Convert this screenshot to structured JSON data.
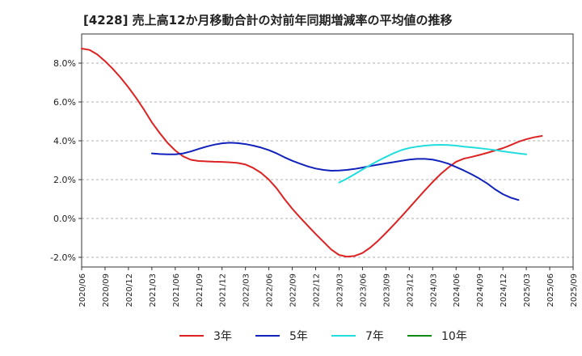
{
  "chart_data": {
    "type": "line",
    "title": "[4228]  売上高12か月移動合計の対前年同期増減率の平均値の推移",
    "xlabel": "",
    "ylabel": "",
    "ylim": [
      -2.5,
      9.5
    ],
    "yticks": [
      -2.0,
      0.0,
      2.0,
      4.0,
      6.0,
      8.0
    ],
    "ytick_labels": [
      "-2.0%",
      "0.0%",
      "2.0%",
      "4.0%",
      "6.0%",
      "8.0%"
    ],
    "x_range": [
      "2020/06",
      "2025/09"
    ],
    "xtick_labels": [
      "2020/06",
      "2020/09",
      "2020/12",
      "2021/03",
      "2021/06",
      "2021/09",
      "2021/12",
      "2022/03",
      "2022/06",
      "2022/09",
      "2022/12",
      "2023/03",
      "2023/06",
      "2023/09",
      "2023/12",
      "2024/03",
      "2024/06",
      "2024/09",
      "2024/12",
      "2025/03",
      "2025/06",
      "2025/09"
    ],
    "grid": "horizontal-dashed",
    "legend": "bottom",
    "series": [
      {
        "name": "3年",
        "color": "#dd2222",
        "points": [
          [
            "2020/06",
            8.75
          ],
          [
            "2020/07",
            8.68
          ],
          [
            "2020/08",
            8.45
          ],
          [
            "2020/09",
            8.1
          ],
          [
            "2020/10",
            7.7
          ],
          [
            "2020/11",
            7.25
          ],
          [
            "2020/12",
            6.75
          ],
          [
            "2021/01",
            6.2
          ],
          [
            "2021/02",
            5.6
          ],
          [
            "2021/03",
            4.95
          ],
          [
            "2021/04",
            4.4
          ],
          [
            "2021/05",
            3.9
          ],
          [
            "2021/06",
            3.5
          ],
          [
            "2021/07",
            3.2
          ],
          [
            "2021/08",
            3.02
          ],
          [
            "2021/09",
            2.96
          ],
          [
            "2021/10",
            2.94
          ],
          [
            "2021/11",
            2.92
          ],
          [
            "2021/12",
            2.91
          ],
          [
            "2022/01",
            2.89
          ],
          [
            "2022/02",
            2.86
          ],
          [
            "2022/03",
            2.78
          ],
          [
            "2022/04",
            2.6
          ],
          [
            "2022/05",
            2.35
          ],
          [
            "2022/06",
            2.0
          ],
          [
            "2022/07",
            1.55
          ],
          [
            "2022/08",
            1.0
          ],
          [
            "2022/09",
            0.5
          ],
          [
            "2022/10",
            0.05
          ],
          [
            "2022/11",
            -0.38
          ],
          [
            "2022/12",
            -0.8
          ],
          [
            "2023/01",
            -1.2
          ],
          [
            "2023/02",
            -1.6
          ],
          [
            "2023/03",
            -1.88
          ],
          [
            "2023/04",
            -1.97
          ],
          [
            "2023/05",
            -1.93
          ],
          [
            "2023/06",
            -1.78
          ],
          [
            "2023/07",
            -1.5
          ],
          [
            "2023/08",
            -1.15
          ],
          [
            "2023/09",
            -0.75
          ],
          [
            "2023/10",
            -0.33
          ],
          [
            "2023/11",
            0.1
          ],
          [
            "2023/12",
            0.55
          ],
          [
            "2024/01",
            1.0
          ],
          [
            "2024/02",
            1.45
          ],
          [
            "2024/03",
            1.88
          ],
          [
            "2024/04",
            2.28
          ],
          [
            "2024/05",
            2.62
          ],
          [
            "2024/06",
            2.92
          ],
          [
            "2024/07",
            3.08
          ],
          [
            "2024/08",
            3.17
          ],
          [
            "2024/09",
            3.27
          ],
          [
            "2024/10",
            3.38
          ],
          [
            "2024/11",
            3.5
          ],
          [
            "2024/12",
            3.62
          ],
          [
            "2025/01",
            3.78
          ],
          [
            "2025/02",
            3.95
          ],
          [
            "2025/03",
            4.08
          ],
          [
            "2025/04",
            4.18
          ],
          [
            "2025/05",
            4.25
          ]
        ]
      },
      {
        "name": "5年",
        "color": "#1122bb",
        "points": [
          [
            "2021/03",
            3.35
          ],
          [
            "2021/04",
            3.32
          ],
          [
            "2021/05",
            3.3
          ],
          [
            "2021/06",
            3.3
          ],
          [
            "2021/07",
            3.35
          ],
          [
            "2021/08",
            3.45
          ],
          [
            "2021/09",
            3.58
          ],
          [
            "2021/10",
            3.7
          ],
          [
            "2021/11",
            3.8
          ],
          [
            "2021/12",
            3.87
          ],
          [
            "2022/01",
            3.9
          ],
          [
            "2022/02",
            3.88
          ],
          [
            "2022/03",
            3.83
          ],
          [
            "2022/04",
            3.75
          ],
          [
            "2022/05",
            3.65
          ],
          [
            "2022/06",
            3.52
          ],
          [
            "2022/07",
            3.35
          ],
          [
            "2022/08",
            3.15
          ],
          [
            "2022/09",
            2.97
          ],
          [
            "2022/10",
            2.82
          ],
          [
            "2022/11",
            2.68
          ],
          [
            "2022/12",
            2.57
          ],
          [
            "2023/01",
            2.5
          ],
          [
            "2023/02",
            2.46
          ],
          [
            "2023/03",
            2.47
          ],
          [
            "2023/04",
            2.5
          ],
          [
            "2023/05",
            2.55
          ],
          [
            "2023/06",
            2.62
          ],
          [
            "2023/07",
            2.7
          ],
          [
            "2023/08",
            2.77
          ],
          [
            "2023/09",
            2.84
          ],
          [
            "2023/10",
            2.9
          ],
          [
            "2023/11",
            2.97
          ],
          [
            "2023/12",
            3.03
          ],
          [
            "2024/01",
            3.07
          ],
          [
            "2024/02",
            3.07
          ],
          [
            "2024/03",
            3.03
          ],
          [
            "2024/04",
            2.94
          ],
          [
            "2024/05",
            2.82
          ],
          [
            "2024/06",
            2.65
          ],
          [
            "2024/07",
            2.47
          ],
          [
            "2024/08",
            2.27
          ],
          [
            "2024/09",
            2.05
          ],
          [
            "2024/10",
            1.8
          ],
          [
            "2024/11",
            1.5
          ],
          [
            "2024/12",
            1.25
          ],
          [
            "2025/01",
            1.07
          ],
          [
            "2025/02",
            0.95
          ]
        ]
      },
      {
        "name": "7年",
        "color": "#22dddd",
        "points": [
          [
            "2023/03",
            1.85
          ],
          [
            "2023/04",
            2.05
          ],
          [
            "2023/05",
            2.28
          ],
          [
            "2023/06",
            2.52
          ],
          [
            "2023/07",
            2.75
          ],
          [
            "2023/08",
            2.97
          ],
          [
            "2023/09",
            3.17
          ],
          [
            "2023/10",
            3.36
          ],
          [
            "2023/11",
            3.52
          ],
          [
            "2023/12",
            3.63
          ],
          [
            "2024/01",
            3.7
          ],
          [
            "2024/02",
            3.75
          ],
          [
            "2024/03",
            3.78
          ],
          [
            "2024/04",
            3.79
          ],
          [
            "2024/05",
            3.78
          ],
          [
            "2024/06",
            3.75
          ],
          [
            "2024/07",
            3.7
          ],
          [
            "2024/08",
            3.66
          ],
          [
            "2024/09",
            3.62
          ],
          [
            "2024/10",
            3.57
          ],
          [
            "2024/11",
            3.52
          ],
          [
            "2024/12",
            3.46
          ],
          [
            "2025/01",
            3.4
          ],
          [
            "2025/02",
            3.35
          ],
          [
            "2025/03",
            3.3
          ]
        ]
      },
      {
        "name": "10年",
        "color": "#118811",
        "points": []
      }
    ]
  }
}
